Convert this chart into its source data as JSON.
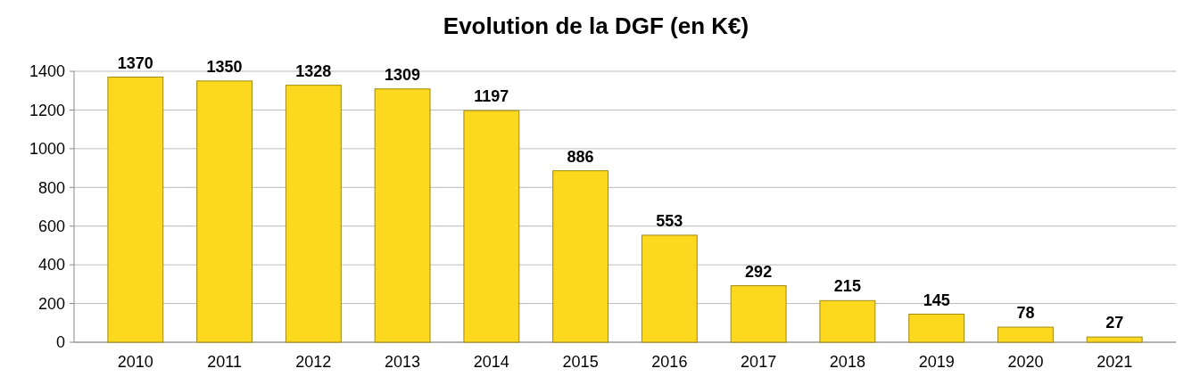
{
  "chart_data": {
    "type": "bar",
    "title": "Evolution de la DGF (en K€)",
    "categories": [
      "2010",
      "2011",
      "2012",
      "2013",
      "2014",
      "2015",
      "2016",
      "2017",
      "2018",
      "2019",
      "2020",
      "2021"
    ],
    "values": [
      1370,
      1350,
      1328,
      1309,
      1197,
      886,
      553,
      292,
      215,
      145,
      78,
      27
    ],
    "color": "#fcd81e",
    "ylim": [
      0,
      1400
    ],
    "yticks": [
      0,
      200,
      400,
      600,
      800,
      1000,
      1200,
      1400
    ],
    "grid": "y",
    "data_labels": true
  }
}
